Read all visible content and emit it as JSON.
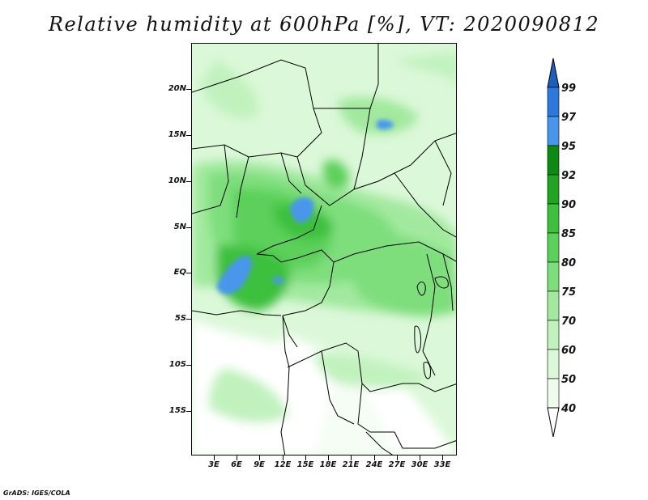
{
  "title": "Relative humidity at 600hPa [%], VT: 2020090812",
  "footer": "GrADS: IGES/COLA",
  "y_axis_labels": [
    "20N",
    "15N",
    "10N",
    "5N",
    "EQ",
    "5S",
    "10S",
    "15S"
  ],
  "x_axis_labels": [
    "3E",
    "6E",
    "9E",
    "12E",
    "15E",
    "18E",
    "21E",
    "24E",
    "27E",
    "30E",
    "33E"
  ],
  "colorbar": {
    "labels": [
      "99",
      "97",
      "95",
      "92",
      "90",
      "85",
      "80",
      "75",
      "70",
      "60",
      "50",
      "40"
    ],
    "colors": [
      "#1e5fbe",
      "#2e77dc",
      "#4896ec",
      "#0e8a14",
      "#21a424",
      "#3cc03e",
      "#5bd05a",
      "#7ede7c",
      "#a2e99f",
      "#c1f2be",
      "#dbf8d8",
      "#eefcec",
      "#ffffff"
    ]
  },
  "map": {
    "land_color": "#ffffff",
    "border_color": "#000000"
  }
}
